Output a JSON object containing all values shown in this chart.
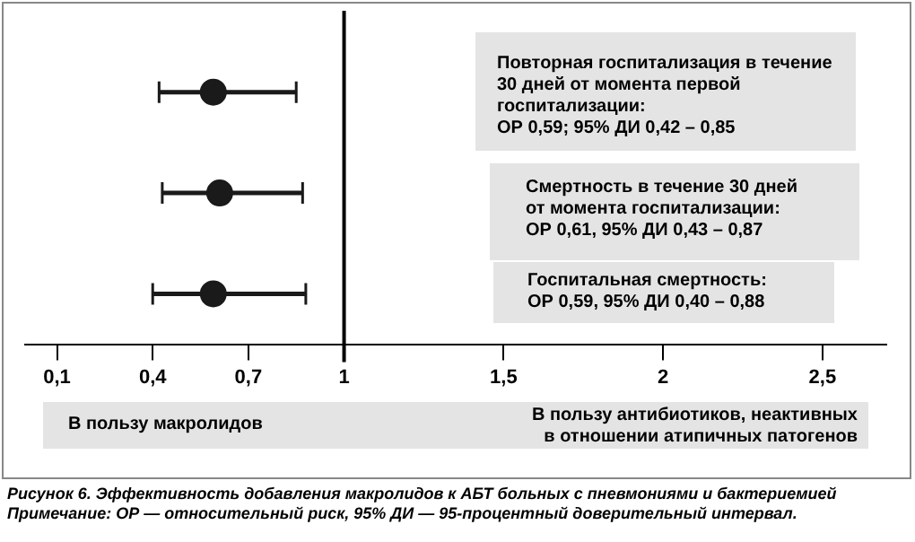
{
  "chart_data": {
    "type": "scatter",
    "orientation": "horizontal",
    "categories": [
      null,
      null,
      null
    ],
    "series": [
      {
        "color": "#1a1a1a",
        "values": [
          0.59,
          0.61,
          0.59
        ],
        "errors": [
          [
            0.42,
            0.85
          ],
          [
            0.43,
            0.87
          ],
          [
            0.4,
            0.88
          ]
        ]
      }
    ],
    "marker": "circle",
    "xlim": [
      0,
      2.7
    ],
    "xticks": [
      {
        "value": 0.1,
        "label": "0,1"
      },
      {
        "value": 0.4,
        "label": "0,4"
      },
      {
        "value": 0.7,
        "label": "0,7"
      },
      1,
      {
        "value": 1.5,
        "label": "1,5"
      },
      2,
      {
        "value": 2.5,
        "label": "2,5"
      }
    ],
    "ref_lines": [
      {
        "axis": "x",
        "value": 1,
        "color": "#000000"
      }
    ],
    "grid": false,
    "legend": false,
    "annotations": [
      "Повторная госпитализация в течение\n30 дней от момента первой\nгоспитализации:\nОР 0,59; 95% ДИ 0,42 – 0,85",
      "Смертность в течение 30 дней\nот момента госпитализации:\nОР 0,61, 95% ДИ 0,43 – 0,87",
      "Госпитальная смертность:\nОР 0,59, 95% ДИ 0,40 – 0,88",
      "В пользу макролидов",
      "В пользу антибиотиков, неактивных\nв отношении атипичных патогенов",
      "Рисунок 6. Эффективность добавления макролидов к АБТ больных с пневмониями и бактериемией",
      "Примечание: ОР — относительный риск, 95% ДИ — 95-процентный доверительный интервал."
    ]
  }
}
